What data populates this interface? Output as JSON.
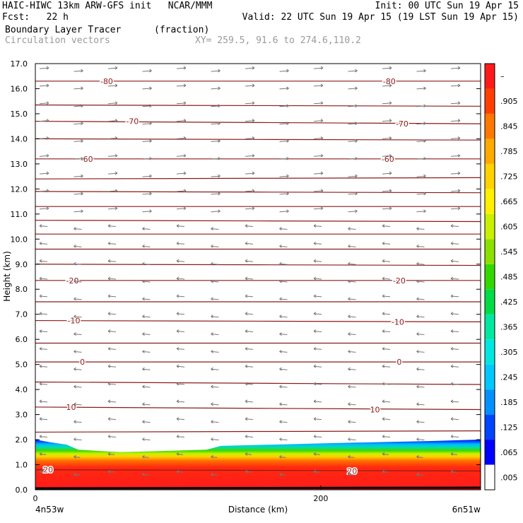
{
  "header": {
    "line1_left": "HAIC-HIWC 13km ARW-GFS init   NCAR/MMM",
    "line1_right": "Init: 00 UTC Sun 19 Apr 15",
    "line2_left": "Fcst:   22 h",
    "line2_right": "Valid: 22 UTC Sun 19 Apr 15 (19 LST Sun 19 Apr 15)",
    "field_name": "Boundary Layer Tracer",
    "field_units": "(fraction)",
    "vector_label": "Circulation vectors",
    "xy_label": "XY= 259.5, 91.6 to 274.6,110.2"
  },
  "colors": {
    "contour": "#8b1a1a",
    "vector": "#777777",
    "low": "#ffffff",
    "high": "#ff1a1a"
  },
  "chart_data": {
    "type": "heatmap",
    "ylabel": "Height (km)",
    "xlabel": "Distance (km)",
    "ylim": [
      0,
      17
    ],
    "xlim": [
      0,
      312
    ],
    "y_ticks": [
      "0.0",
      "1.0",
      "2.0",
      "3.0",
      "4.0",
      "5.0",
      "6.0",
      "7.0",
      "8.0",
      "9.0",
      "10.0",
      "11.0",
      "12.0",
      "13.0",
      "14.0",
      "15.0",
      "16.0",
      "17.0"
    ],
    "x_ticks": [
      {
        "value": 0,
        "label": "0"
      },
      {
        "value": 200,
        "label": "200"
      }
    ],
    "x_endpoints": {
      "left": "4n53w",
      "right": "6n51w"
    },
    "colorbar_labels": [
      ".005",
      ".065",
      ".125",
      ".185",
      ".245",
      ".305",
      ".365",
      ".425",
      ".485",
      ".545",
      ".605",
      ".665",
      ".725",
      ".785",
      ".845",
      ".905",
      "–"
    ],
    "colorbar_colors": [
      "#ffffff",
      "#0000ff",
      "#0044ff",
      "#0090ff",
      "#00c8ff",
      "#00e6e0",
      "#00e8a0",
      "#00dc46",
      "#33d800",
      "#8ce000",
      "#c8f000",
      "#fff000",
      "#ffd200",
      "#ffaa00",
      "#ff7800",
      "#ff4000",
      "#ff1a1a"
    ],
    "boundary_layer_top_km": [
      {
        "x": 0,
        "y": 2.0
      },
      {
        "x": 10,
        "y": 1.9
      },
      {
        "x": 22,
        "y": 1.8
      },
      {
        "x": 30,
        "y": 1.6
      },
      {
        "x": 60,
        "y": 1.5
      },
      {
        "x": 120,
        "y": 1.6
      },
      {
        "x": 130,
        "y": 1.75
      },
      {
        "x": 200,
        "y": 1.85
      },
      {
        "x": 280,
        "y": 1.95
      },
      {
        "x": 312,
        "y": 2.0
      }
    ],
    "contour_levels": [
      {
        "label": "-80",
        "y": [
          16.3,
          16.3
        ],
        "label_pos": [
          {
            "x": 50,
            "y": 16.3
          },
          {
            "x": 248,
            "y": 16.3
          }
        ]
      },
      {
        "label": "",
        "y": [
          15.35,
          15.3
        ],
        "label_pos": []
      },
      {
        "label": "-70",
        "y": [
          14.7,
          14.6
        ],
        "label_pos": [
          {
            "x": 68,
            "y": 14.7
          },
          {
            "x": 257,
            "y": 14.6
          }
        ]
      },
      {
        "label": "",
        "y": [
          14.0,
          13.95
        ],
        "label_pos": []
      },
      {
        "label": "-60",
        "y": [
          13.2,
          13.2
        ],
        "label_pos": [
          {
            "x": 36,
            "y": 13.2
          },
          {
            "x": 247,
            "y": 13.2
          }
        ]
      },
      {
        "label": "",
        "y": [
          12.4,
          12.45
        ],
        "label_pos": []
      },
      {
        "label": "",
        "y": [
          11.9,
          11.85
        ],
        "label_pos": []
      },
      {
        "label": "",
        "y": [
          11.3,
          11.3
        ],
        "label_pos": []
      },
      {
        "label": "",
        "y": [
          10.75,
          10.7
        ],
        "label_pos": []
      },
      {
        "label": "",
        "y": [
          10.2,
          10.2
        ],
        "label_pos": []
      },
      {
        "label": "",
        "y": [
          9.6,
          9.6
        ],
        "label_pos": []
      },
      {
        "label": "",
        "y": [
          9.0,
          8.95
        ],
        "label_pos": []
      },
      {
        "label": "-20",
        "y": [
          8.35,
          8.35
        ],
        "label_pos": [
          {
            "x": 26,
            "y": 8.35
          },
          {
            "x": 255,
            "y": 8.35
          }
        ]
      },
      {
        "label": "",
        "y": [
          7.5,
          7.5
        ],
        "label_pos": []
      },
      {
        "label": "-10",
        "y": [
          6.75,
          6.7
        ],
        "label_pos": [
          {
            "x": 27,
            "y": 6.75
          },
          {
            "x": 254,
            "y": 6.7
          }
        ]
      },
      {
        "label": "",
        "y": [
          5.85,
          5.85
        ],
        "label_pos": []
      },
      {
        "label": "0",
        "y": [
          5.1,
          5.1
        ],
        "label_pos": [
          {
            "x": 33,
            "y": 5.1
          },
          {
            "x": 255,
            "y": 5.1
          }
        ]
      },
      {
        "label": "",
        "y": [
          4.3,
          4.2
        ],
        "label_pos": []
      },
      {
        "label": "10",
        "y": [
          3.3,
          3.2
        ],
        "label_pos": [
          {
            "x": 25,
            "y": 3.3
          },
          {
            "x": 238,
            "y": 3.2
          }
        ]
      },
      {
        "label": "",
        "y": [
          2.3,
          2.35
        ],
        "label_pos": []
      },
      {
        "label": "20",
        "y": [
          0.8,
          0.75
        ],
        "label_pos": [
          {
            "x": 9,
            "y": 0.8
          },
          {
            "x": 222,
            "y": 0.75
          }
        ]
      }
    ]
  }
}
